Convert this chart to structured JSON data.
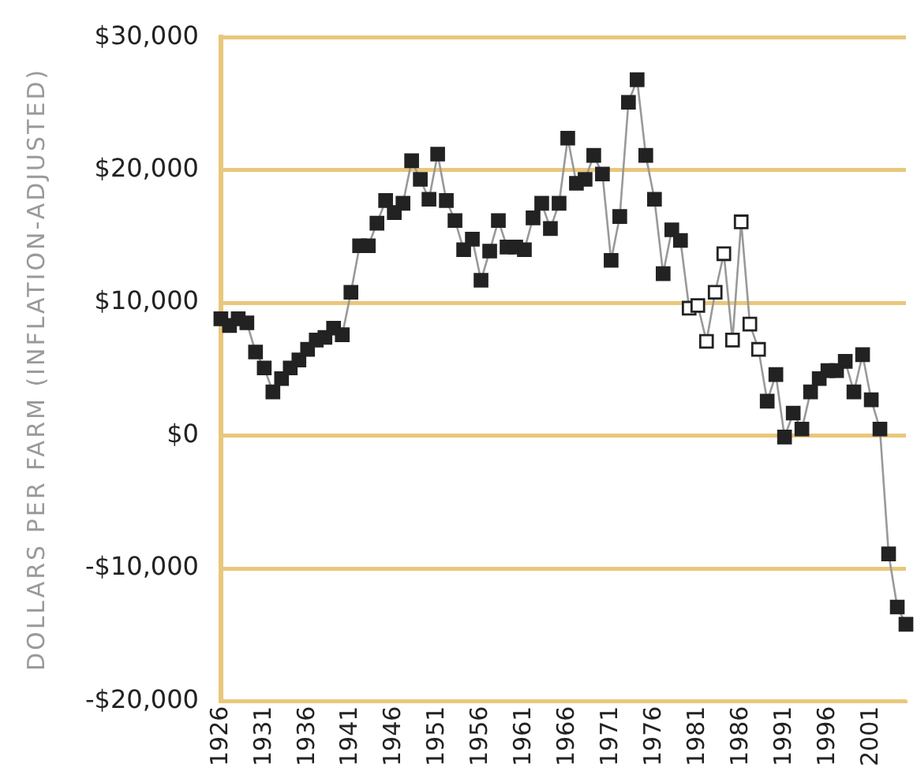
{
  "chart_data": {
    "type": "line",
    "ylabel": "DOLLARS PER FARM (INFLATION-ADJUSTED)",
    "x": [
      1926,
      1927,
      1928,
      1929,
      1930,
      1931,
      1932,
      1933,
      1934,
      1935,
      1936,
      1937,
      1938,
      1939,
      1940,
      1941,
      1942,
      1943,
      1944,
      1945,
      1946,
      1947,
      1948,
      1949,
      1950,
      1951,
      1952,
      1953,
      1954,
      1955,
      1956,
      1957,
      1958,
      1959,
      1960,
      1961,
      1962,
      1963,
      1964,
      1965,
      1966,
      1967,
      1968,
      1969,
      1970,
      1971,
      1972,
      1973,
      1974,
      1975,
      1976,
      1977,
      1978,
      1979,
      1980,
      1981,
      1982,
      1983,
      1984,
      1985,
      1986,
      1987,
      1988,
      1989,
      1990,
      1991,
      1992,
      1993,
      1994,
      1995,
      1996,
      1997,
      1998,
      1999,
      2000,
      2001,
      2002,
      2003,
      2004,
      2005
    ],
    "series": [
      {
        "color": "#999999",
        "values": [
          8800,
          8300,
          8800,
          8500,
          6300,
          5100,
          3300,
          4300,
          5100,
          5700,
          6500,
          7200,
          7400,
          8100,
          7600,
          10800,
          14300,
          14300,
          16000,
          17700,
          16800,
          17500,
          20700,
          19300,
          17800,
          21200,
          17700,
          16200,
          14000,
          14800,
          11700,
          13900,
          16200,
          14200,
          14200,
          14000,
          16400,
          17500,
          15600,
          17500,
          22400,
          19000,
          19300,
          21100,
          19700,
          13200,
          16500,
          25100,
          26800,
          21100,
          17800,
          12200,
          15500,
          14700,
          9600,
          9800,
          7100,
          10800,
          13700,
          7200,
          16100,
          8400,
          6500,
          2600,
          4600,
          -100,
          1700,
          500,
          3300,
          4300,
          4900,
          4900,
          5600,
          3300,
          6100,
          2700,
          500,
          -8900,
          -12900,
          -14200
        ],
        "colors": [
          "#222222",
          "#222222",
          "#222222",
          "#222222",
          "#222222",
          "#222222",
          "#222222",
          "#222222",
          "#222222",
          "#222222",
          "#222222",
          "#222222",
          "#222222",
          "#222222",
          "#222222",
          "#222222",
          "#222222",
          "#222222",
          "#222222",
          "#222222",
          "#222222",
          "#222222",
          "#222222",
          "#222222",
          "#222222",
          "#222222",
          "#222222",
          "#222222",
          "#222222",
          "#222222",
          "#222222",
          "#222222",
          "#222222",
          "#222222",
          "#222222",
          "#222222",
          "#222222",
          "#222222",
          "#222222",
          "#222222",
          "#222222",
          "#222222",
          "#222222",
          "#222222",
          "#222222",
          "#222222",
          "#222222",
          "#222222",
          "#222222",
          "#222222",
          "#222222",
          "#222222",
          "#222222",
          "#222222",
          "#ffffff",
          "#ffffff",
          "#ffffff",
          "#ffffff",
          "#ffffff",
          "#ffffff",
          "#ffffff",
          "#ffffff",
          "#ffffff",
          "#222222",
          "#222222",
          "#222222",
          "#222222",
          "#222222",
          "#222222",
          "#222222",
          "#222222",
          "#222222",
          "#222222",
          "#222222",
          "#222222",
          "#222222",
          "#222222",
          "#222222",
          "#222222",
          "#222222"
        ]
      }
    ],
    "xlim": [
      1926,
      2005
    ],
    "xticks": [
      1926,
      1931,
      1936,
      1941,
      1946,
      1951,
      1956,
      1961,
      1966,
      1971,
      1976,
      1981,
      1986,
      1991,
      1996,
      2001
    ],
    "ylim": [
      -20000,
      30000
    ],
    "yticks": [
      {
        "value": -20000,
        "label": "-$20,000"
      },
      {
        "value": -10000,
        "label": "-$10,000"
      },
      {
        "value": 0,
        "label": "$0"
      },
      {
        "value": 10000,
        "label": "$10,000"
      },
      {
        "value": 20000,
        "label": "$20,000"
      },
      {
        "value": 30000,
        "label": "$30,000"
      }
    ],
    "grid": "y",
    "legend": false,
    "marker": "square",
    "line_style": "solid"
  }
}
